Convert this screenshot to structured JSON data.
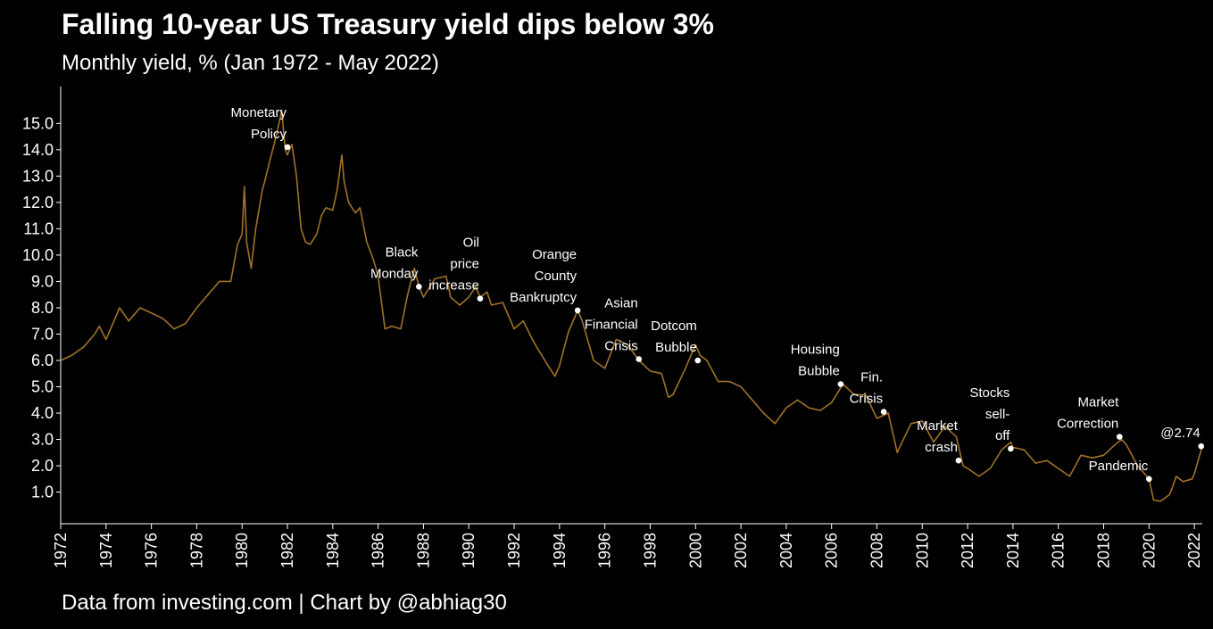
{
  "header": {
    "title": "Falling 10-year US Treasury yield dips below 3%",
    "subtitle": "Monthly yield, % (Jan 1972 - May 2022)"
  },
  "footer": {
    "caption": "Data from investing.com | Chart by @abhiag30"
  },
  "colors": {
    "background": "#000000",
    "line": "#a0722a",
    "text": "#ffffff",
    "marker": "#ffffff"
  },
  "chart_data": {
    "type": "line",
    "title": "Falling 10-year US Treasury yield dips below 3%",
    "subtitle": "Monthly yield, % (Jan 1972 - May 2022)",
    "xlabel": "",
    "ylabel": "",
    "xlim": [
      1972.0,
      2022.35
    ],
    "ylim": [
      -0.2,
      16.4
    ],
    "grid": false,
    "x_ticks": [
      "1972",
      "1974",
      "1976",
      "1978",
      "1980",
      "1982",
      "1984",
      "1986",
      "1988",
      "1990",
      "1992",
      "1994",
      "1996",
      "1998",
      "2000",
      "2002",
      "2004",
      "2006",
      "2008",
      "2010",
      "2012",
      "2014",
      "2016",
      "2018",
      "2020",
      "2022"
    ],
    "y_ticks": [
      "1.0",
      "2.0",
      "3.0",
      "4.0",
      "5.0",
      "6.0",
      "7.0",
      "8.0",
      "9.0",
      "10.0",
      "11.0",
      "12.0",
      "13.0",
      "14.0",
      "15.0"
    ],
    "series": [
      {
        "x": [
          1972.0,
          1972.5,
          1973.0,
          1973.5,
          1973.7,
          1974.0,
          1974.6,
          1975.0,
          1975.5,
          1976.0,
          1976.5,
          1977.0,
          1977.5,
          1978.0,
          1978.5,
          1979.0,
          1979.5,
          1979.8,
          1980.0,
          1980.1,
          1980.2,
          1980.4,
          1980.6,
          1980.9,
          1981.0,
          1981.2,
          1981.5,
          1981.75,
          1981.9,
          1982.0,
          1982.2,
          1982.4,
          1982.6,
          1982.8,
          1983.0,
          1983.3,
          1983.5,
          1983.7,
          1984.0,
          1984.2,
          1984.4,
          1984.5,
          1984.7,
          1985.0,
          1985.2,
          1985.5,
          1985.8,
          1986.0,
          1986.3,
          1986.6,
          1987.0,
          1987.3,
          1987.6,
          1987.8,
          1988.0,
          1988.5,
          1989.0,
          1989.2,
          1989.6,
          1990.0,
          1990.3,
          1990.5,
          1990.8,
          1991.0,
          1991.5,
          1992.0,
          1992.4,
          1992.8,
          1993.0,
          1993.5,
          1993.8,
          1994.0,
          1994.4,
          1994.8,
          1995.0,
          1995.5,
          1996.0,
          1996.5,
          1997.0,
          1997.5,
          1998.0,
          1998.5,
          1998.8,
          1999.0,
          1999.5,
          2000.0,
          2000.2,
          2000.5,
          2001.0,
          2001.5,
          2002.0,
          2002.5,
          2003.0,
          2003.5,
          2004.0,
          2004.5,
          2005.0,
          2005.5,
          2006.0,
          2006.5,
          2007.0,
          2007.5,
          2008.0,
          2008.5,
          2008.9,
          2009.0,
          2009.5,
          2010.0,
          2010.5,
          2011.0,
          2011.5,
          2011.8,
          2012.0,
          2012.5,
          2013.0,
          2013.5,
          2013.9,
          2014.0,
          2014.5,
          2015.0,
          2015.5,
          2016.0,
          2016.5,
          2017.0,
          2017.5,
          2018.0,
          2018.5,
          2018.8,
          2019.0,
          2019.5,
          2019.8,
          2020.0,
          2020.2,
          2020.5,
          2020.9,
          2021.0,
          2021.2,
          2021.5,
          2021.9,
          2022.0,
          2022.2,
          2022.35
        ],
        "y": [
          6.0,
          6.2,
          6.5,
          7.0,
          7.3,
          6.8,
          8.0,
          7.5,
          8.0,
          7.8,
          7.6,
          7.2,
          7.4,
          8.0,
          8.5,
          9.0,
          9.0,
          10.4,
          10.8,
          12.6,
          10.5,
          9.5,
          11.0,
          12.5,
          12.8,
          13.5,
          14.5,
          15.5,
          14.0,
          13.8,
          14.2,
          13.0,
          11.0,
          10.5,
          10.4,
          10.8,
          11.5,
          11.8,
          11.7,
          12.5,
          13.8,
          12.8,
          12.0,
          11.6,
          11.8,
          10.5,
          9.8,
          9.2,
          7.2,
          7.3,
          7.2,
          8.5,
          9.5,
          8.8,
          8.4,
          9.1,
          9.2,
          8.4,
          8.1,
          8.4,
          8.8,
          8.4,
          8.6,
          8.1,
          8.2,
          7.2,
          7.5,
          6.8,
          6.5,
          5.8,
          5.4,
          5.8,
          7.1,
          7.9,
          7.5,
          6.0,
          5.7,
          6.8,
          6.6,
          6.0,
          5.6,
          5.5,
          4.6,
          4.7,
          5.6,
          6.6,
          6.2,
          6.0,
          5.2,
          5.2,
          5.0,
          4.5,
          4.0,
          3.6,
          4.2,
          4.5,
          4.2,
          4.1,
          4.4,
          5.1,
          4.7,
          4.7,
          3.8,
          4.0,
          2.5,
          2.7,
          3.6,
          3.7,
          2.9,
          3.5,
          3.1,
          2.0,
          1.9,
          1.6,
          1.9,
          2.6,
          2.9,
          2.7,
          2.6,
          2.1,
          2.2,
          1.9,
          1.6,
          2.4,
          2.3,
          2.4,
          2.8,
          3.0,
          2.8,
          2.0,
          1.7,
          1.5,
          0.7,
          0.65,
          0.9,
          1.1,
          1.6,
          1.4,
          1.5,
          1.7,
          2.3,
          2.74
        ]
      }
    ],
    "annotations": [
      {
        "x": 1982.0,
        "y": 14.1,
        "lines": [
          "Monetary",
          "Policy"
        ]
      },
      {
        "x": 1987.8,
        "y": 8.8,
        "lines": [
          "Black",
          "Monday"
        ]
      },
      {
        "x": 1990.5,
        "y": 8.35,
        "lines": [
          "Oil",
          "price",
          "increase"
        ]
      },
      {
        "x": 1994.8,
        "y": 7.9,
        "lines": [
          "Orange",
          "County",
          "Bankruptcy"
        ]
      },
      {
        "x": 1997.5,
        "y": 6.05,
        "lines": [
          "Asian",
          "Financial",
          "Crisis"
        ]
      },
      {
        "x": 2000.1,
        "y": 6.0,
        "lines": [
          "Dotcom",
          "Bubble"
        ]
      },
      {
        "x": 2006.4,
        "y": 5.1,
        "lines": [
          "Housing",
          "Bubble"
        ]
      },
      {
        "x": 2008.3,
        "y": 4.05,
        "lines": [
          "Fin.",
          "Crisis"
        ]
      },
      {
        "x": 2011.6,
        "y": 2.2,
        "lines": [
          "Market",
          "crash"
        ]
      },
      {
        "x": 2013.9,
        "y": 2.65,
        "lines": [
          "Stocks",
          "sell-",
          "off"
        ]
      },
      {
        "x": 2018.7,
        "y": 3.1,
        "lines": [
          "Market",
          "Correction"
        ]
      },
      {
        "x": 2020.0,
        "y": 1.5,
        "lines": [
          "Pandemic"
        ]
      },
      {
        "x": 2022.3,
        "y": 2.74,
        "lines": [
          "@2.74"
        ]
      }
    ]
  }
}
